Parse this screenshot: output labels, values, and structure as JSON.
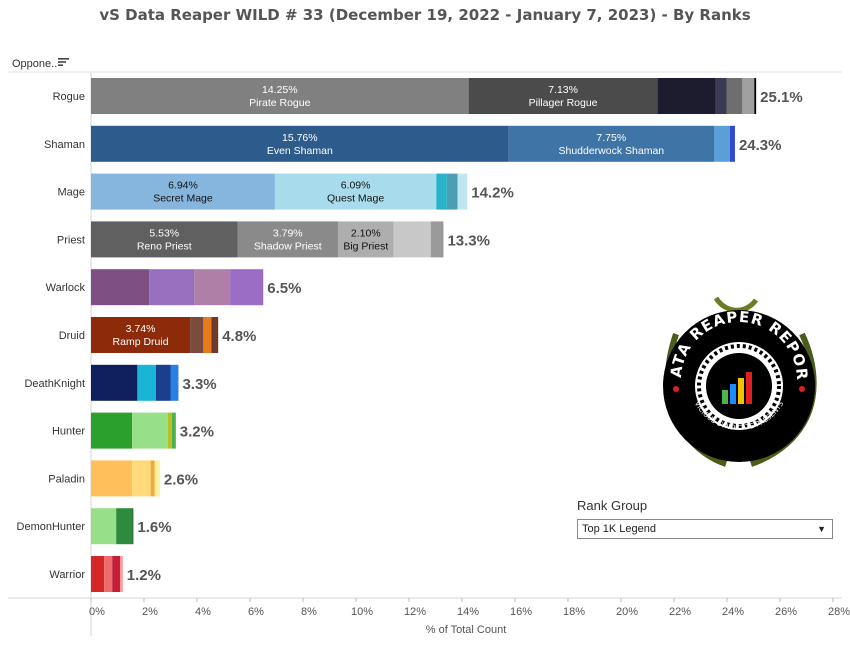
{
  "title": "vS Data Reaper WILD # 33 (December 19, 2022 - January 7, 2023) - By Ranks",
  "opponent_header": "Oppone..",
  "rank_group": {
    "title": "Rank Group",
    "selected": "Top 1K Legend"
  },
  "logo": {
    "text_top": "DATA REAPER REPORT",
    "text_bottom": "VICIOUS SYNDICATE PRESENTS",
    "colors": [
      "#000000",
      "#ffffff",
      "#e02020",
      "#1a8cff",
      "#f2c200",
      "#4ab54a",
      "#6b8e23"
    ]
  },
  "chart_data": {
    "type": "bar",
    "orientation": "horizontal",
    "stacked": true,
    "title": "vS Data Reaper WILD # 33 (December 19, 2022 - January 7, 2023) - By Ranks",
    "xlabel": "% of Total Count",
    "ylabel": "",
    "xlim": [
      0,
      28
    ],
    "xticks": [
      "0%",
      "2%",
      "4%",
      "6%",
      "8%",
      "10%",
      "12%",
      "14%",
      "16%",
      "18%",
      "20%",
      "22%",
      "24%",
      "26%",
      "28%"
    ],
    "grid": false,
    "categories": [
      {
        "name": "Rogue",
        "total_label": "25.1%",
        "segments": [
          {
            "value": 14.25,
            "color": "#808080",
            "pct": "14.25%",
            "label": "Pirate Rogue"
          },
          {
            "value": 7.13,
            "color": "#4b4b4b",
            "pct": "7.13%",
            "label": "Pillager Rogue"
          },
          {
            "value": 2.2,
            "color": "#1c1c2e"
          },
          {
            "value": 0.4,
            "color": "#3a3a55"
          },
          {
            "value": 0.6,
            "color": "#6e6e6e"
          },
          {
            "value": 0.45,
            "color": "#a0a0a0"
          },
          {
            "value": 0.07,
            "color": "#000000"
          }
        ]
      },
      {
        "name": "Shaman",
        "total_label": "24.3%",
        "segments": [
          {
            "value": 15.76,
            "color": "#2d5b8c",
            "pct": "15.76%",
            "label": "Even Shaman"
          },
          {
            "value": 7.75,
            "color": "#3e74a6",
            "pct": "7.75%",
            "label": "Shudderwock Shaman"
          },
          {
            "value": 0.6,
            "color": "#5b9fd6"
          },
          {
            "value": 0.19,
            "color": "#2f49d1"
          }
        ]
      },
      {
        "name": "Mage",
        "total_label": "14.2%",
        "segments": [
          {
            "value": 6.94,
            "color": "#86b6dd",
            "pct": "6.94%",
            "label": "Secret Mage"
          },
          {
            "value": 6.09,
            "color": "#a8dcec",
            "pct": "6.09%",
            "label": "Quest Mage"
          },
          {
            "value": 0.4,
            "color": "#2ab3c8"
          },
          {
            "value": 0.4,
            "color": "#4a9fb5"
          },
          {
            "value": 0.37,
            "color": "#bfe6f2"
          }
        ]
      },
      {
        "name": "Priest",
        "total_label": "13.3%",
        "segments": [
          {
            "value": 5.53,
            "color": "#606060",
            "pct": "5.53%",
            "label": "Reno Priest"
          },
          {
            "value": 3.79,
            "color": "#8a8a8a",
            "pct": "3.79%",
            "label": "Shadow Priest"
          },
          {
            "value": 2.1,
            "color": "#aeaeae",
            "pct": "2.10%",
            "label": "Big Priest"
          },
          {
            "value": 1.4,
            "color": "#c8c8c8"
          },
          {
            "value": 0.48,
            "color": "#9a9a9a"
          }
        ]
      },
      {
        "name": "Warlock",
        "total_label": "6.5%",
        "segments": [
          {
            "value": 2.2,
            "color": "#7e4f82"
          },
          {
            "value": 1.7,
            "color": "#9670bf"
          },
          {
            "value": 1.35,
            "color": "#b07fa8"
          },
          {
            "value": 1.25,
            "color": "#9a6cc4"
          }
        ]
      },
      {
        "name": "Druid",
        "total_label": "4.8%",
        "segments": [
          {
            "value": 3.74,
            "color": "#8c2a0a",
            "pct": "3.74%",
            "label": "Ramp Druid"
          },
          {
            "value": 0.5,
            "color": "#7a4a3a"
          },
          {
            "value": 0.3,
            "color": "#e87a1e"
          },
          {
            "value": 0.26,
            "color": "#6b3a2a"
          }
        ]
      },
      {
        "name": "DeathKnight",
        "total_label": "3.3%",
        "segments": [
          {
            "value": 1.75,
            "color": "#0d1f5c"
          },
          {
            "value": 0.7,
            "color": "#1ab5d6"
          },
          {
            "value": 0.55,
            "color": "#1a3d8c"
          },
          {
            "value": 0.3,
            "color": "#2a7fe0"
          }
        ]
      },
      {
        "name": "Hunter",
        "total_label": "3.2%",
        "segments": [
          {
            "value": 1.55,
            "color": "#2ca02c"
          },
          {
            "value": 1.35,
            "color": "#98df8a"
          },
          {
            "value": 0.15,
            "color": "#bcbd22"
          },
          {
            "value": 0.15,
            "color": "#4caf50"
          }
        ]
      },
      {
        "name": "Paladin",
        "total_label": "2.6%",
        "segments": [
          {
            "value": 1.55,
            "color": "#ffbf5a"
          },
          {
            "value": 0.7,
            "color": "#ffd97a"
          },
          {
            "value": 0.15,
            "color": "#f4a83a"
          },
          {
            "value": 0.2,
            "color": "#fff0a0"
          }
        ]
      },
      {
        "name": "DemonHunter",
        "total_label": "1.6%",
        "segments": [
          {
            "value": 0.95,
            "color": "#98df8a"
          },
          {
            "value": 0.6,
            "color": "#2e8b3e"
          },
          {
            "value": 0.05,
            "color": "#1f6b2a"
          }
        ]
      },
      {
        "name": "Warrior",
        "total_label": "1.2%",
        "segments": [
          {
            "value": 0.5,
            "color": "#d62728"
          },
          {
            "value": 0.3,
            "color": "#ef6a6a"
          },
          {
            "value": 0.3,
            "color": "#c41e3a"
          },
          {
            "value": 0.1,
            "color": "#ff9896"
          }
        ]
      }
    ]
  }
}
